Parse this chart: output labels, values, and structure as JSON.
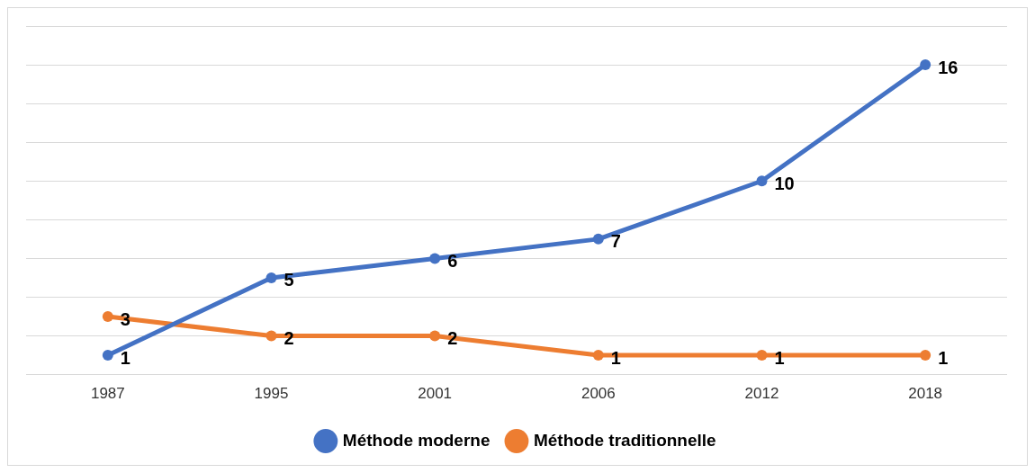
{
  "chart_data": {
    "type": "line",
    "categories": [
      "1987",
      "1995",
      "2001",
      "2006",
      "2012",
      "2018"
    ],
    "series": [
      {
        "name": "Méthode moderne",
        "color": "#4472c4",
        "values": [
          1,
          5,
          6,
          7,
          10,
          16
        ]
      },
      {
        "name": "Méthode traditionnelle",
        "color": "#ed7d31",
        "values": [
          3,
          2,
          2,
          1,
          1,
          1
        ]
      }
    ],
    "ylim": [
      0,
      18
    ],
    "yticks": [
      0,
      2,
      4,
      6,
      8,
      10,
      12,
      14,
      16,
      18
    ],
    "tick_labels": "x",
    "grid": "y",
    "legend": "bottom",
    "marker": "circle",
    "line_style": "solid",
    "data_labels": true
  }
}
